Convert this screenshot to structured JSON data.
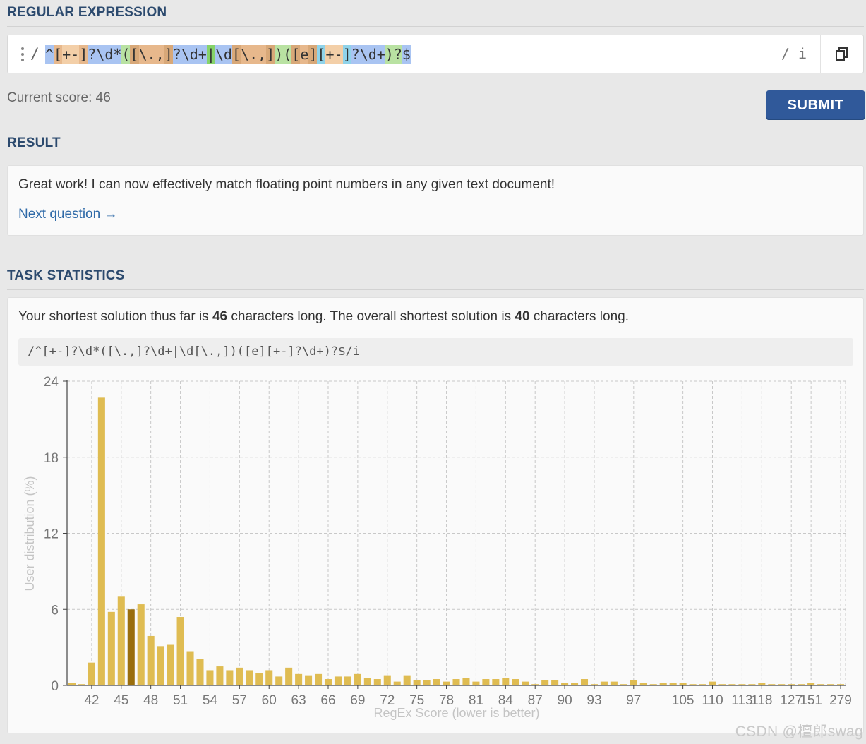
{
  "sections": {
    "regex_title": "REGULAR EXPRESSION",
    "result_title": "RESULT",
    "stats_title": "TASK STATISTICS"
  },
  "regex": {
    "open": "/",
    "flags": "/ i",
    "tokens": [
      {
        "t": "^",
        "c": "#a9c4f2"
      },
      {
        "t": "[",
        "c": "#e7b88c"
      },
      {
        "t": "+-",
        "c": "#f3cfa8"
      },
      {
        "t": "]",
        "c": "#e7b88c"
      },
      {
        "t": "?\\d*",
        "c": "#a9c4f2"
      },
      {
        "t": "(",
        "c": "#b9e2a2"
      },
      {
        "t": "[",
        "c": "#d8a878"
      },
      {
        "t": "\\.,",
        "c": "#e7b88c"
      },
      {
        "t": "]",
        "c": "#d8a878"
      },
      {
        "t": "?\\d+",
        "c": "#a9c4f2"
      },
      {
        "t": "|",
        "c": "#86d36a"
      },
      {
        "t": "\\d",
        "c": "#a9c4f2"
      },
      {
        "t": "[",
        "c": "#d8a878"
      },
      {
        "t": "\\.,",
        "c": "#e7b88c"
      },
      {
        "t": "]",
        "c": "#d8a878"
      },
      {
        "t": ")",
        "c": "#b9e2a2"
      },
      {
        "t": "(",
        "c": "#b9e2a2"
      },
      {
        "t": "[",
        "c": "#d8a878"
      },
      {
        "t": "e",
        "c": "#e7b88c"
      },
      {
        "t": "]",
        "c": "#d8a878"
      },
      {
        "t": "[",
        "c": "#8fd3ea"
      },
      {
        "t": "+-",
        "c": "#f3cfa8"
      },
      {
        "t": "]",
        "c": "#8fd3ea"
      },
      {
        "t": "?\\d+",
        "c": "#a9c4f2"
      },
      {
        "t": ")",
        "c": "#b9e2a2"
      },
      {
        "t": "?",
        "c": "#b9e2a2"
      },
      {
        "t": "$",
        "c": "#a9c4f2"
      }
    ]
  },
  "score": {
    "label": "Current score: 46"
  },
  "submit": {
    "label": "SUBMIT"
  },
  "result": {
    "message": "Great work! I can now effectively match floating point numbers in any given text document!",
    "next": "Next question →"
  },
  "stats": {
    "pre": "Your shortest solution thus far is ",
    "user_len": "46",
    "mid": " characters long. The overall shortest solution is ",
    "best_len": "40",
    "post": " characters long.",
    "code": "/^[+-]?\\d*([\\.,]?\\d+|\\d[\\.,])([e][+-]?\\d+)?$/i"
  },
  "colors": {
    "bar": "#dfbc52",
    "bar_highlight": "#9a6e0d",
    "accent": "#30599a",
    "title": "#2c4a6e"
  },
  "chart_data": {
    "type": "bar",
    "xlabel": "RegEx Score (lower is better)",
    "ylabel": "User distribution (%)",
    "ylim": [
      0,
      24
    ],
    "yticks": [
      0,
      6,
      12,
      18,
      24
    ],
    "grid": true,
    "highlight_score": 46,
    "tick_labels": [
      "42",
      "45",
      "48",
      "51",
      "54",
      "57",
      "60",
      "63",
      "66",
      "69",
      "72",
      "75",
      "78",
      "81",
      "84",
      "87",
      "90",
      "93",
      "97",
      "105",
      "110",
      "113",
      "118",
      "127",
      "151",
      "279"
    ],
    "bars": [
      {
        "x": "40",
        "y": 0.2
      },
      {
        "x": "41",
        "y": 0.1
      },
      {
        "x": "42",
        "y": 1.8
      },
      {
        "x": "43",
        "y": 22.7
      },
      {
        "x": "44",
        "y": 5.8
      },
      {
        "x": "45",
        "y": 7.0
      },
      {
        "x": "46",
        "y": 6.0
      },
      {
        "x": "47",
        "y": 6.4
      },
      {
        "x": "48",
        "y": 3.9
      },
      {
        "x": "49",
        "y": 3.1
      },
      {
        "x": "50",
        "y": 3.2
      },
      {
        "x": "51",
        "y": 5.4
      },
      {
        "x": "52",
        "y": 2.7
      },
      {
        "x": "53",
        "y": 2.1
      },
      {
        "x": "54",
        "y": 1.2
      },
      {
        "x": "55",
        "y": 1.5
      },
      {
        "x": "56",
        "y": 1.2
      },
      {
        "x": "57",
        "y": 1.4
      },
      {
        "x": "58",
        "y": 1.2
      },
      {
        "x": "59",
        "y": 1.0
      },
      {
        "x": "60",
        "y": 1.2
      },
      {
        "x": "61",
        "y": 0.7
      },
      {
        "x": "62",
        "y": 1.4
      },
      {
        "x": "63",
        "y": 0.9
      },
      {
        "x": "64",
        "y": 0.8
      },
      {
        "x": "65",
        "y": 0.9
      },
      {
        "x": "66",
        "y": 0.5
      },
      {
        "x": "67",
        "y": 0.7
      },
      {
        "x": "68",
        "y": 0.7
      },
      {
        "x": "69",
        "y": 0.9
      },
      {
        "x": "70",
        "y": 0.6
      },
      {
        "x": "71",
        "y": 0.5
      },
      {
        "x": "72",
        "y": 0.8
      },
      {
        "x": "73",
        "y": 0.3
      },
      {
        "x": "74",
        "y": 0.8
      },
      {
        "x": "75",
        "y": 0.4
      },
      {
        "x": "76",
        "y": 0.4
      },
      {
        "x": "77",
        "y": 0.5
      },
      {
        "x": "78",
        "y": 0.3
      },
      {
        "x": "79",
        "y": 0.5
      },
      {
        "x": "80",
        "y": 0.6
      },
      {
        "x": "81",
        "y": 0.3
      },
      {
        "x": "82",
        "y": 0.5
      },
      {
        "x": "83",
        "y": 0.5
      },
      {
        "x": "84",
        "y": 0.6
      },
      {
        "x": "85",
        "y": 0.5
      },
      {
        "x": "86",
        "y": 0.3
      },
      {
        "x": "87",
        "y": 0.1
      },
      {
        "x": "88",
        "y": 0.4
      },
      {
        "x": "89",
        "y": 0.4
      },
      {
        "x": "90",
        "y": 0.2
      },
      {
        "x": "91",
        "y": 0.2
      },
      {
        "x": "92",
        "y": 0.5
      },
      {
        "x": "93",
        "y": 0.1
      },
      {
        "x": "94",
        "y": 0.3
      },
      {
        "x": "95",
        "y": 0.3
      },
      {
        "x": "96",
        "y": 0.1
      },
      {
        "x": "97",
        "y": 0.4
      },
      {
        "x": "98",
        "y": 0.2
      },
      {
        "x": "99",
        "y": 0.1
      },
      {
        "x": "100",
        "y": 0.2
      },
      {
        "x": "101",
        "y": 0.2
      },
      {
        "x": "105",
        "y": 0.2
      },
      {
        "x": "106",
        "y": 0.1
      },
      {
        "x": "107",
        "y": 0.1
      },
      {
        "x": "110",
        "y": 0.3
      },
      {
        "x": "111",
        "y": 0.1
      },
      {
        "x": "112",
        "y": 0.1
      },
      {
        "x": "113",
        "y": 0.1
      },
      {
        "x": "115",
        "y": 0.1
      },
      {
        "x": "118",
        "y": 0.2
      },
      {
        "x": "120",
        "y": 0.1
      },
      {
        "x": "123",
        "y": 0.1
      },
      {
        "x": "127",
        "y": 0.1
      },
      {
        "x": "135",
        "y": 0.1
      },
      {
        "x": "151",
        "y": 0.2
      },
      {
        "x": "170",
        "y": 0.1
      },
      {
        "x": "200",
        "y": 0.1
      },
      {
        "x": "279",
        "y": 0.1
      }
    ]
  },
  "watermark": "CSDN @檀郎swag"
}
